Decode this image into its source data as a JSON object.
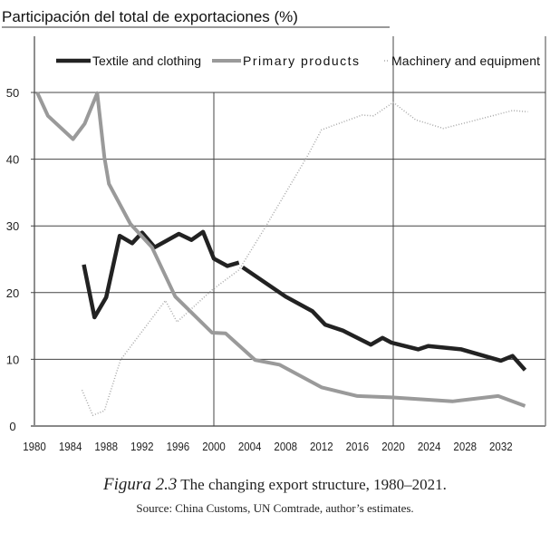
{
  "chart_data": {
    "type": "line",
    "title": "Participación del total de exportaciones (%)",
    "xlabel": "",
    "ylabel": "",
    "xlim": [
      1980,
      2037
    ],
    "ylim": [
      0,
      55
    ],
    "x_ticks": [
      1980,
      1984,
      1988,
      1992,
      1996,
      2000,
      2004,
      2008,
      2012,
      2016,
      2020,
      2024,
      2028,
      2032
    ],
    "y_ticks": [
      0,
      10,
      20,
      30,
      40,
      50
    ],
    "grid": {
      "horizontal": true,
      "vertical_at": [
        2000,
        2020
      ]
    },
    "legend_placement": "top",
    "series": [
      {
        "name": "Textile and clothing",
        "color": "#222222",
        "style": "thick-solid",
        "segments": [
          [
            [
              1985.5,
              24.2
            ],
            [
              1986.7,
              16.3
            ],
            [
              1988,
              19.3
            ],
            [
              1989.5,
              28.5
            ],
            [
              1990.9,
              27.4
            ],
            [
              1992,
              29
            ],
            [
              1993.4,
              26.8
            ],
            [
              1996.1,
              28.8
            ],
            [
              1997.5,
              27.9
            ],
            [
              1998.8,
              29.1
            ],
            [
              2000,
              25.1
            ],
            [
              2001.5,
              24
            ],
            [
              2002.8,
              24.5
            ]
          ],
          [
            [
              2003.2,
              23.8
            ],
            [
              2008,
              19.4
            ],
            [
              2011,
              17.2
            ],
            [
              2012.4,
              15.2
            ],
            [
              2014.4,
              14.3
            ],
            [
              2017.5,
              12.2
            ],
            [
              2018.8,
              13.2
            ],
            [
              2019.8,
              12.5
            ],
            [
              2022.8,
              11.5
            ],
            [
              2023.9,
              12
            ],
            [
              2027.6,
              11.5
            ],
            [
              2032,
              9.8
            ],
            [
              2033.3,
              10.5
            ],
            [
              2034.7,
              8.4
            ]
          ]
        ]
      },
      {
        "name": "Primary products",
        "color": "#9a9a9a",
        "style": "thick-gray",
        "segments": [
          [
            [
              1980.3,
              50
            ],
            [
              1981.5,
              46.5
            ],
            [
              1984.3,
              43
            ],
            [
              1985.6,
              45.3
            ],
            [
              1987,
              49.9
            ],
            [
              1987.8,
              40.3
            ],
            [
              1988.3,
              36.3
            ],
            [
              1990.7,
              30.3
            ],
            [
              1993.1,
              26.8
            ],
            [
              1995.7,
              19.4
            ],
            [
              1999.8,
              14
            ],
            [
              2001.3,
              13.9
            ],
            [
              2004.6,
              9.9
            ],
            [
              2007.3,
              9.2
            ],
            [
              2012,
              5.8
            ],
            [
              2016,
              4.5
            ],
            [
              2019.8,
              4.3
            ],
            [
              2026.6,
              3.7
            ],
            [
              2031.7,
              4.5
            ],
            [
              2034.7,
              3.0
            ]
          ]
        ]
      },
      {
        "name": "Machinery and equipment",
        "color": "#a8a8a8",
        "style": "dotted",
        "segments": [
          [
            [
              1985.3,
              5.4
            ],
            [
              1986.5,
              1.6
            ],
            [
              1987.8,
              2.3
            ],
            [
              1989.6,
              9.9
            ],
            [
              1994.6,
              18.8
            ],
            [
              1995.9,
              15.6
            ],
            [
              1999.8,
              20.4
            ],
            [
              2002.8,
              23.4
            ],
            [
              2005.6,
              29.5
            ],
            [
              2010.4,
              40.4
            ],
            [
              2012,
              44.4
            ],
            [
              2016.5,
              46.6
            ],
            [
              2017.8,
              46.5
            ],
            [
              2020,
              48.5
            ],
            [
              2022.5,
              45.9
            ],
            [
              2025.6,
              44.6
            ],
            [
              2028.2,
              45.5
            ],
            [
              2033.3,
              47.3
            ],
            [
              2035,
              47.1
            ]
          ]
        ]
      }
    ]
  },
  "caption": {
    "figure_label": "Figura 2.3",
    "figure_text": "The changing export structure, 1980–2021.",
    "source": "Source: China Customs, UN Comtrade, author’s estimates."
  }
}
